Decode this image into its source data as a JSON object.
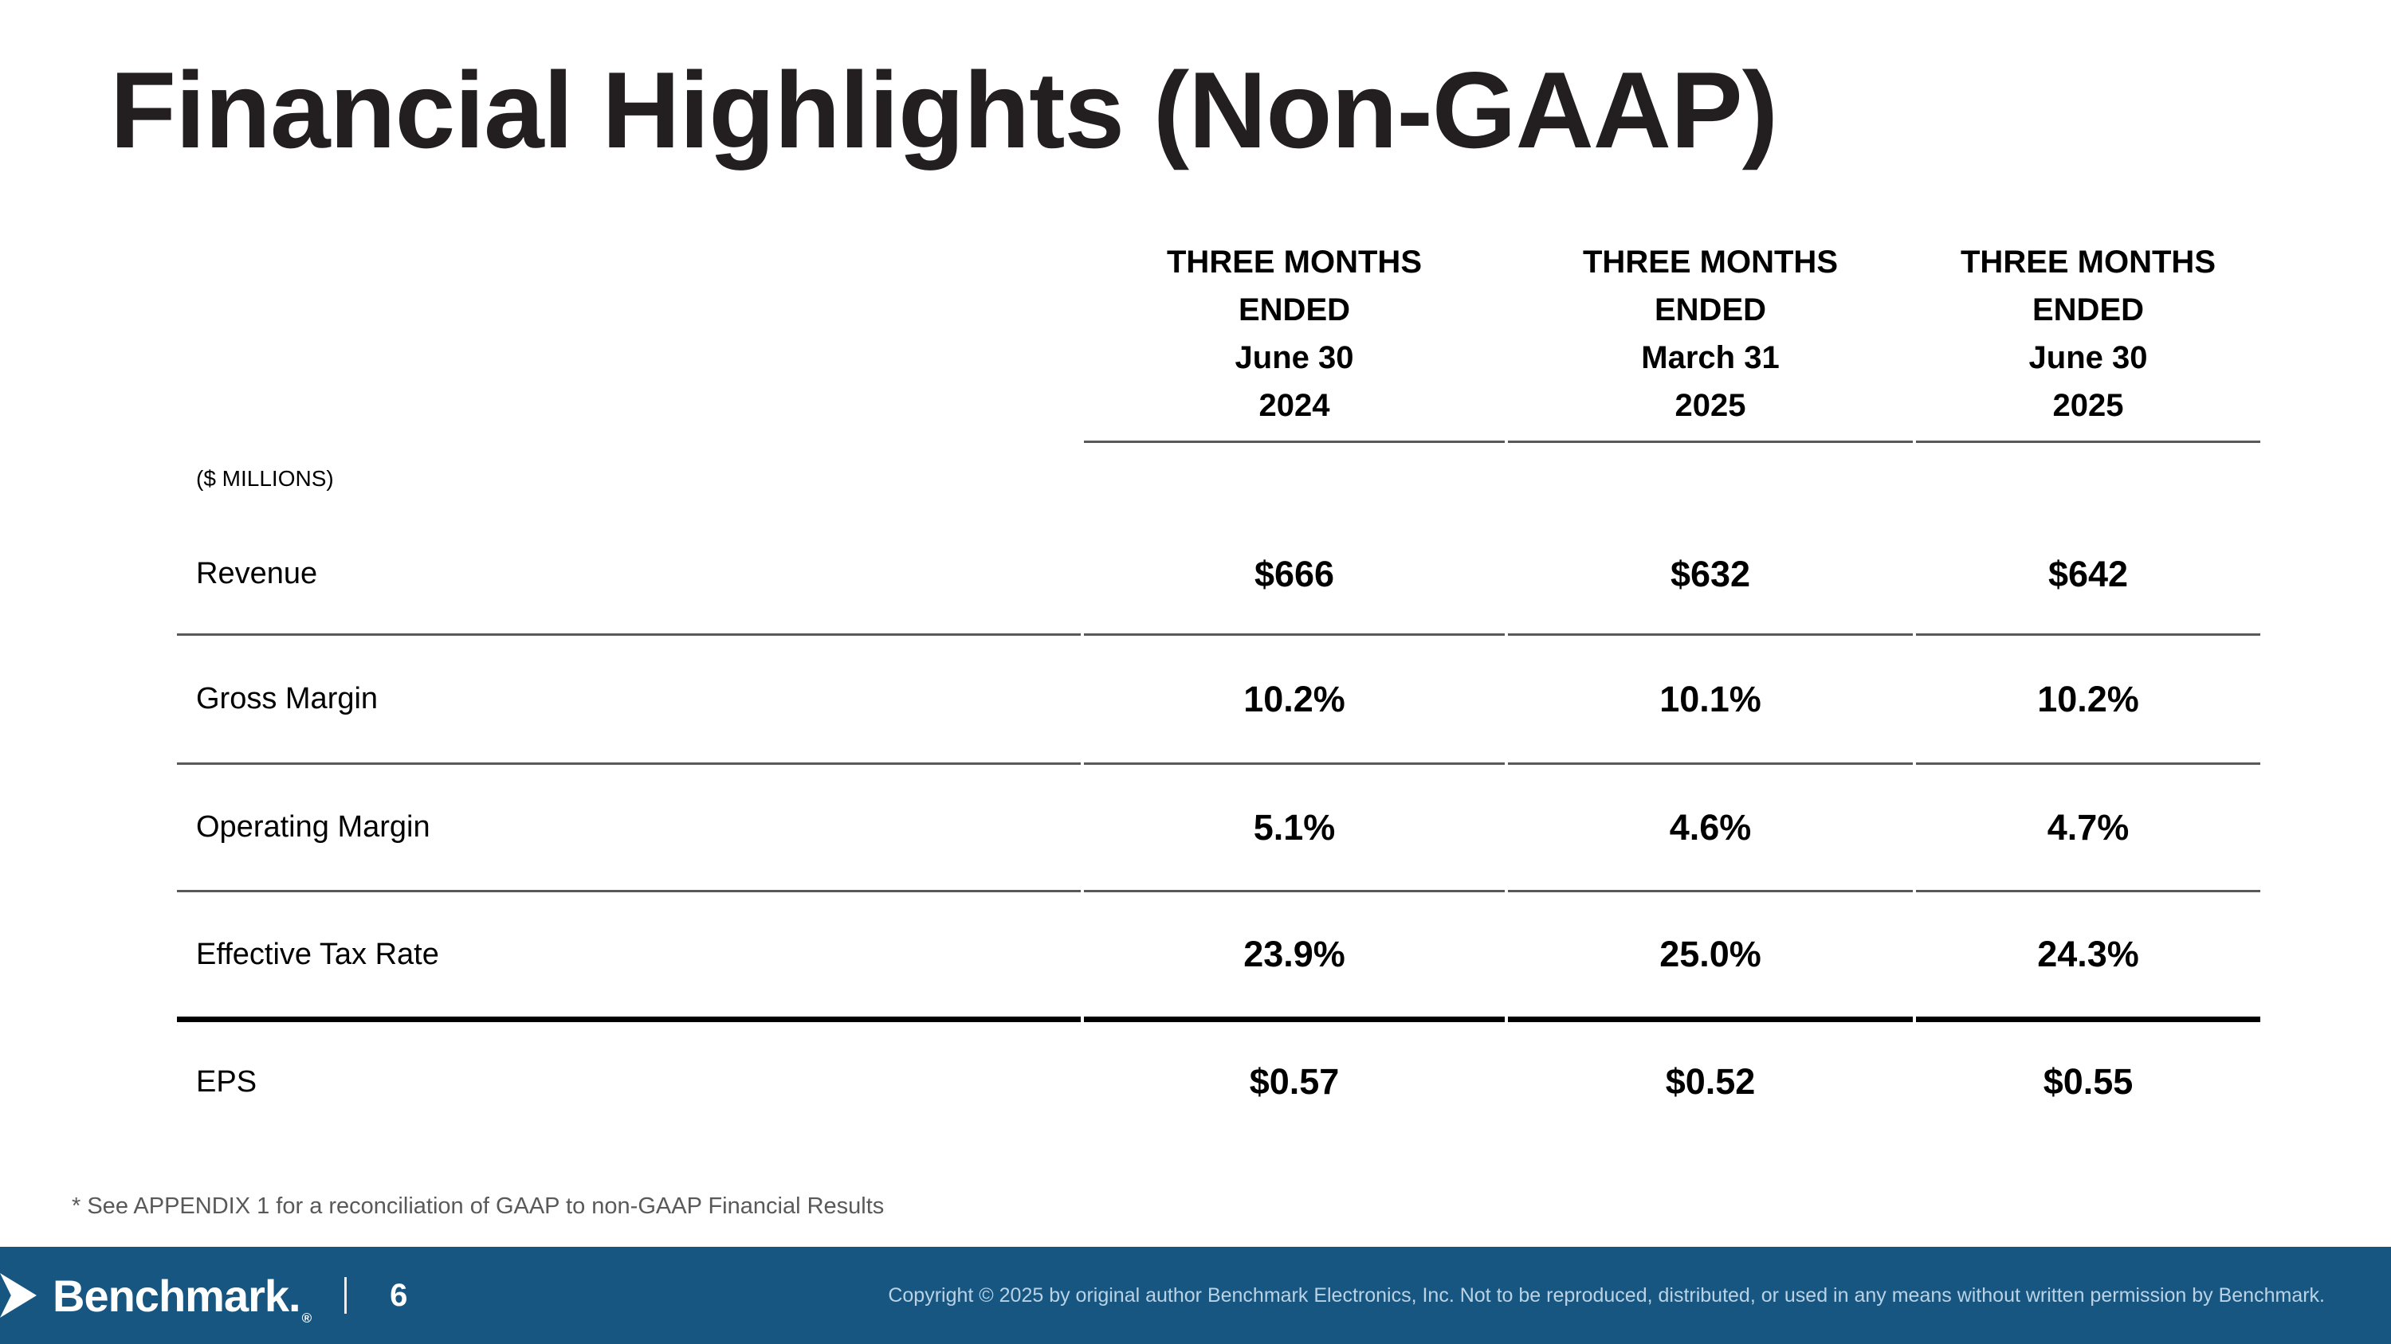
{
  "slide": {
    "title": "Financial Highlights (Non-GAAP)",
    "footnote": "* See APPENDIX 1 for a reconciliation of GAAP to non-GAAP Financial Results",
    "background_color": "#ffffff",
    "title_color": "#231f20"
  },
  "table": {
    "unit_label": "($ MILLIONS)",
    "columns": [
      {
        "lines": [
          "THREE MONTHS",
          "ENDED",
          "June 30",
          "2024"
        ]
      },
      {
        "lines": [
          "THREE MONTHS",
          "ENDED",
          "March 31",
          "2025"
        ]
      },
      {
        "lines": [
          "THREE MONTHS",
          "ENDED",
          "June 30",
          "2025"
        ]
      }
    ],
    "rows": [
      {
        "label": "Revenue",
        "values": [
          "$666",
          "$632",
          "$642"
        ]
      },
      {
        "label": "Gross Margin",
        "values": [
          "10.2%",
          "10.1%",
          "10.2%"
        ]
      },
      {
        "label": "Operating Margin",
        "values": [
          "5.1%",
          "4.6%",
          "4.7%"
        ]
      },
      {
        "label": "Effective Tax Rate",
        "values": [
          "23.9%",
          "25.0%",
          "24.3%"
        ]
      },
      {
        "label": "EPS",
        "values": [
          "$0.57",
          "$0.52",
          "$0.55"
        ]
      }
    ],
    "line_colors": {
      "separator_gray": "#58595b",
      "separator_black": "#000000"
    }
  },
  "footer": {
    "logo_text": "Benchmark.",
    "registered_mark": "®",
    "page_number": "6",
    "copyright": "Copyright © 2025 by original author Benchmark Electronics, Inc. Not to be reproduced, distributed, or used in any means without written permission by Benchmark.",
    "bar_color": "#175681",
    "copyright_color": "#b9d2e4"
  }
}
